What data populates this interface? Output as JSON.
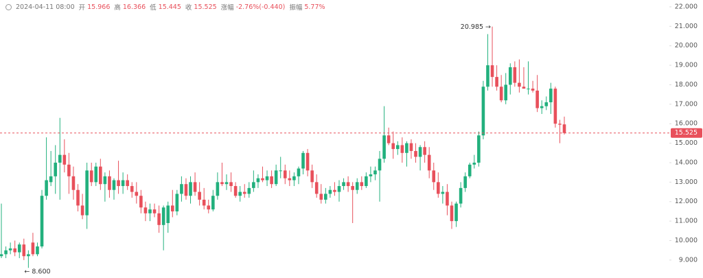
{
  "header": {
    "datetime": "2024-04-11 08:00",
    "open_label": "开",
    "open": "15.966",
    "high_label": "高",
    "high": "16.366",
    "low_label": "低",
    "low": "15.445",
    "close_label": "收",
    "close": "15.525",
    "change_label": "涨幅",
    "change": "-2.76%(-0.440)",
    "amplitude_label": "振幅",
    "amplitude": "5.77%"
  },
  "chart_data": {
    "type": "candlestick",
    "up_color": "#22b07d",
    "down_color": "#e8505b",
    "ylim": [
      8.08,
      22.35
    ],
    "yticks": [
      {
        "value": 9,
        "label": "9.000"
      },
      {
        "value": 10,
        "label": "10.000"
      },
      {
        "value": 11,
        "label": "11.000"
      },
      {
        "value": 12,
        "label": "12.000"
      },
      {
        "value": 13,
        "label": "13.000"
      },
      {
        "value": 14,
        "label": "14.000"
      },
      {
        "value": 15,
        "label": "15.000"
      },
      {
        "value": 16,
        "label": "16.000"
      },
      {
        "value": 17,
        "label": "17.000"
      },
      {
        "value": 18,
        "label": "18.000"
      },
      {
        "value": 19,
        "label": "19.000"
      },
      {
        "value": 20,
        "label": "20.000"
      },
      {
        "value": 21,
        "label": "21.000"
      },
      {
        "value": 22,
        "label": "22.000"
      }
    ],
    "last_price": {
      "value": 15.525,
      "label": "15.525"
    },
    "annotations": [
      {
        "text": "20.985 →",
        "value": 20.985,
        "index": 109,
        "side": "left"
      },
      {
        "text": "← 8.600",
        "value": 8.6,
        "index": 6,
        "side": "right"
      }
    ],
    "ohlc": [
      [
        9.2,
        11.9,
        9.1,
        9.3
      ],
      [
        9.3,
        9.7,
        9.1,
        9.5
      ],
      [
        9.5,
        9.9,
        9.3,
        9.6
      ],
      [
        9.6,
        10.0,
        9.2,
        9.4
      ],
      [
        9.4,
        9.9,
        9.1,
        9.8
      ],
      [
        9.8,
        10.1,
        9.0,
        9.2
      ],
      [
        9.2,
        9.5,
        8.6,
        9.3
      ],
      [
        9.9,
        10.4,
        9.2,
        9.3
      ],
      [
        9.3,
        9.9,
        9.2,
        9.7
      ],
      [
        9.7,
        12.6,
        9.6,
        12.3
      ],
      [
        12.3,
        15.3,
        12.1,
        13.1
      ],
      [
        13.0,
        14.6,
        12.8,
        13.3
      ],
      [
        13.3,
        14.9,
        12.4,
        14.0
      ],
      [
        14.0,
        16.3,
        12.1,
        14.4
      ],
      [
        14.4,
        15.2,
        13.5,
        13.9
      ],
      [
        13.9,
        14.5,
        12.4,
        13.3
      ],
      [
        13.3,
        13.8,
        12.1,
        12.6
      ],
      [
        12.6,
        12.9,
        11.5,
        11.8
      ],
      [
        11.8,
        12.4,
        11.1,
        11.3
      ],
      [
        11.3,
        14.0,
        10.6,
        13.6
      ],
      [
        13.6,
        14.0,
        12.8,
        13.0
      ],
      [
        13.0,
        14.0,
        12.8,
        13.8
      ],
      [
        13.8,
        14.2,
        12.6,
        12.9
      ],
      [
        12.9,
        13.5,
        12.0,
        13.3
      ],
      [
        13.3,
        13.6,
        12.2,
        12.6
      ],
      [
        12.6,
        13.2,
        12.1,
        13.1
      ],
      [
        13.1,
        14.1,
        12.4,
        12.8
      ],
      [
        12.8,
        13.5,
        12.4,
        13.1
      ],
      [
        13.1,
        13.4,
        12.6,
        12.8
      ],
      [
        12.8,
        13.0,
        12.2,
        12.5
      ],
      [
        12.5,
        13.0,
        11.9,
        12.3
      ],
      [
        12.3,
        12.6,
        11.4,
        11.7
      ],
      [
        11.7,
        12.0,
        11.0,
        11.4
      ],
      [
        11.4,
        11.9,
        11.0,
        11.6
      ],
      [
        11.6,
        11.9,
        11.2,
        11.4
      ],
      [
        11.4,
        11.8,
        10.4,
        10.8
      ],
      [
        10.8,
        11.8,
        9.5,
        11.7
      ],
      [
        10.9,
        12.0,
        10.4,
        11.8
      ],
      [
        11.8,
        12.6,
        11.2,
        11.5
      ],
      [
        11.5,
        12.6,
        11.3,
        12.4
      ],
      [
        12.4,
        13.3,
        12.0,
        12.9
      ],
      [
        12.9,
        13.2,
        12.1,
        12.3
      ],
      [
        12.3,
        13.3,
        11.9,
        13.0
      ],
      [
        13.0,
        13.5,
        12.3,
        12.5
      ],
      [
        12.5,
        13.0,
        11.8,
        12.1
      ],
      [
        12.1,
        12.7,
        11.6,
        11.8
      ],
      [
        11.8,
        12.1,
        11.4,
        11.6
      ],
      [
        11.6,
        12.6,
        11.5,
        12.3
      ],
      [
        12.3,
        13.5,
        12.1,
        13.0
      ],
      [
        13.0,
        14.0,
        12.8,
        12.9
      ],
      [
        12.9,
        13.4,
        12.6,
        13.0
      ],
      [
        13.0,
        13.5,
        12.5,
        12.8
      ],
      [
        12.8,
        13.0,
        12.2,
        12.3
      ],
      [
        12.3,
        12.8,
        12.0,
        12.5
      ],
      [
        12.5,
        12.9,
        12.2,
        12.4
      ],
      [
        12.4,
        13.0,
        12.2,
        12.7
      ],
      [
        12.7,
        13.6,
        12.5,
        13.0
      ],
      [
        13.0,
        13.4,
        12.7,
        13.2
      ],
      [
        13.2,
        13.8,
        13.0,
        13.1
      ],
      [
        13.1,
        13.6,
        12.8,
        13.3
      ],
      [
        13.3,
        13.6,
        12.7,
        12.9
      ],
      [
        12.9,
        13.9,
        12.8,
        13.6
      ],
      [
        13.6,
        14.3,
        13.2,
        13.6
      ],
      [
        13.6,
        13.9,
        12.9,
        13.2
      ],
      [
        13.2,
        13.6,
        12.8,
        13.1
      ],
      [
        13.1,
        13.5,
        12.8,
        13.3
      ],
      [
        13.3,
        13.8,
        12.9,
        13.7
      ],
      [
        13.7,
        14.6,
        13.4,
        14.5
      ],
      [
        14.5,
        14.7,
        13.3,
        13.6
      ],
      [
        13.6,
        13.9,
        12.7,
        13.0
      ],
      [
        13.0,
        13.4,
        12.2,
        12.4
      ],
      [
        12.4,
        12.9,
        11.9,
        12.1
      ],
      [
        12.1,
        12.7,
        11.9,
        12.4
      ],
      [
        12.4,
        12.8,
        12.2,
        12.6
      ],
      [
        12.6,
        13.0,
        12.3,
        12.5
      ],
      [
        12.5,
        13.1,
        12.0,
        12.8
      ],
      [
        12.8,
        13.2,
        12.6,
        13.0
      ],
      [
        13.0,
        13.3,
        12.5,
        12.8
      ],
      [
        12.8,
        13.0,
        10.9,
        12.6
      ],
      [
        12.6,
        13.2,
        12.4,
        13.0
      ],
      [
        13.0,
        13.3,
        12.6,
        12.8
      ],
      [
        12.8,
        13.5,
        12.7,
        13.3
      ],
      [
        13.3,
        13.8,
        13.0,
        13.4
      ],
      [
        13.4,
        13.8,
        13.1,
        13.6
      ],
      [
        13.6,
        14.6,
        12.0,
        14.2
      ],
      [
        14.2,
        16.9,
        14.0,
        15.4
      ],
      [
        15.4,
        15.8,
        14.9,
        15.0
      ],
      [
        15.0,
        15.6,
        14.2,
        14.7
      ],
      [
        14.7,
        15.1,
        14.4,
        14.9
      ],
      [
        14.9,
        15.3,
        14.0,
        14.5
      ],
      [
        14.5,
        15.1,
        13.8,
        15.0
      ],
      [
        15.0,
        15.2,
        14.2,
        14.6
      ],
      [
        14.6,
        15.0,
        14.0,
        14.3
      ],
      [
        14.3,
        14.9,
        13.6,
        14.8
      ],
      [
        14.8,
        15.1,
        14.0,
        14.4
      ],
      [
        14.4,
        14.8,
        13.2,
        13.6
      ],
      [
        13.6,
        14.0,
        12.6,
        13.0
      ],
      [
        13.0,
        13.5,
        12.2,
        12.4
      ],
      [
        12.4,
        12.8,
        11.9,
        12.5
      ],
      [
        12.5,
        12.9,
        11.3,
        11.8
      ],
      [
        11.8,
        12.0,
        10.6,
        11.0
      ],
      [
        11.0,
        12.0,
        10.7,
        11.9
      ],
      [
        11.9,
        13.0,
        11.7,
        12.7
      ],
      [
        12.7,
        13.5,
        12.5,
        13.3
      ],
      [
        13.3,
        14.0,
        13.2,
        13.9
      ],
      [
        13.9,
        14.4,
        13.7,
        14.0
      ],
      [
        14.0,
        15.6,
        13.8,
        15.4
      ],
      [
        15.4,
        18.2,
        15.2,
        17.9
      ],
      [
        17.9,
        20.6,
        17.7,
        19.0
      ],
      [
        19.0,
        20.985,
        17.9,
        18.4
      ],
      [
        18.4,
        19.0,
        17.7,
        17.9
      ],
      [
        17.9,
        18.5,
        17.1,
        17.2
      ],
      [
        17.2,
        18.6,
        17.0,
        18.0
      ],
      [
        18.0,
        19.1,
        17.5,
        18.9
      ],
      [
        18.9,
        19.2,
        17.9,
        18.1
      ],
      [
        18.1,
        19.3,
        17.6,
        17.9
      ],
      [
        17.9,
        18.9,
        17.8,
        17.8
      ],
      [
        17.8,
        19.2,
        17.5,
        17.8
      ],
      [
        17.8,
        18.2,
        17.6,
        17.7
      ],
      [
        17.7,
        18.5,
        16.6,
        16.8
      ],
      [
        16.8,
        17.2,
        16.5,
        16.9
      ],
      [
        16.9,
        17.4,
        16.7,
        17.1
      ],
      [
        17.1,
        18.1,
        16.5,
        17.8
      ],
      [
        17.8,
        17.9,
        15.8,
        16.0
      ],
      [
        16.0,
        16.2,
        15.0,
        15.95
      ],
      [
        15.966,
        16.366,
        15.445,
        15.525
      ]
    ]
  }
}
